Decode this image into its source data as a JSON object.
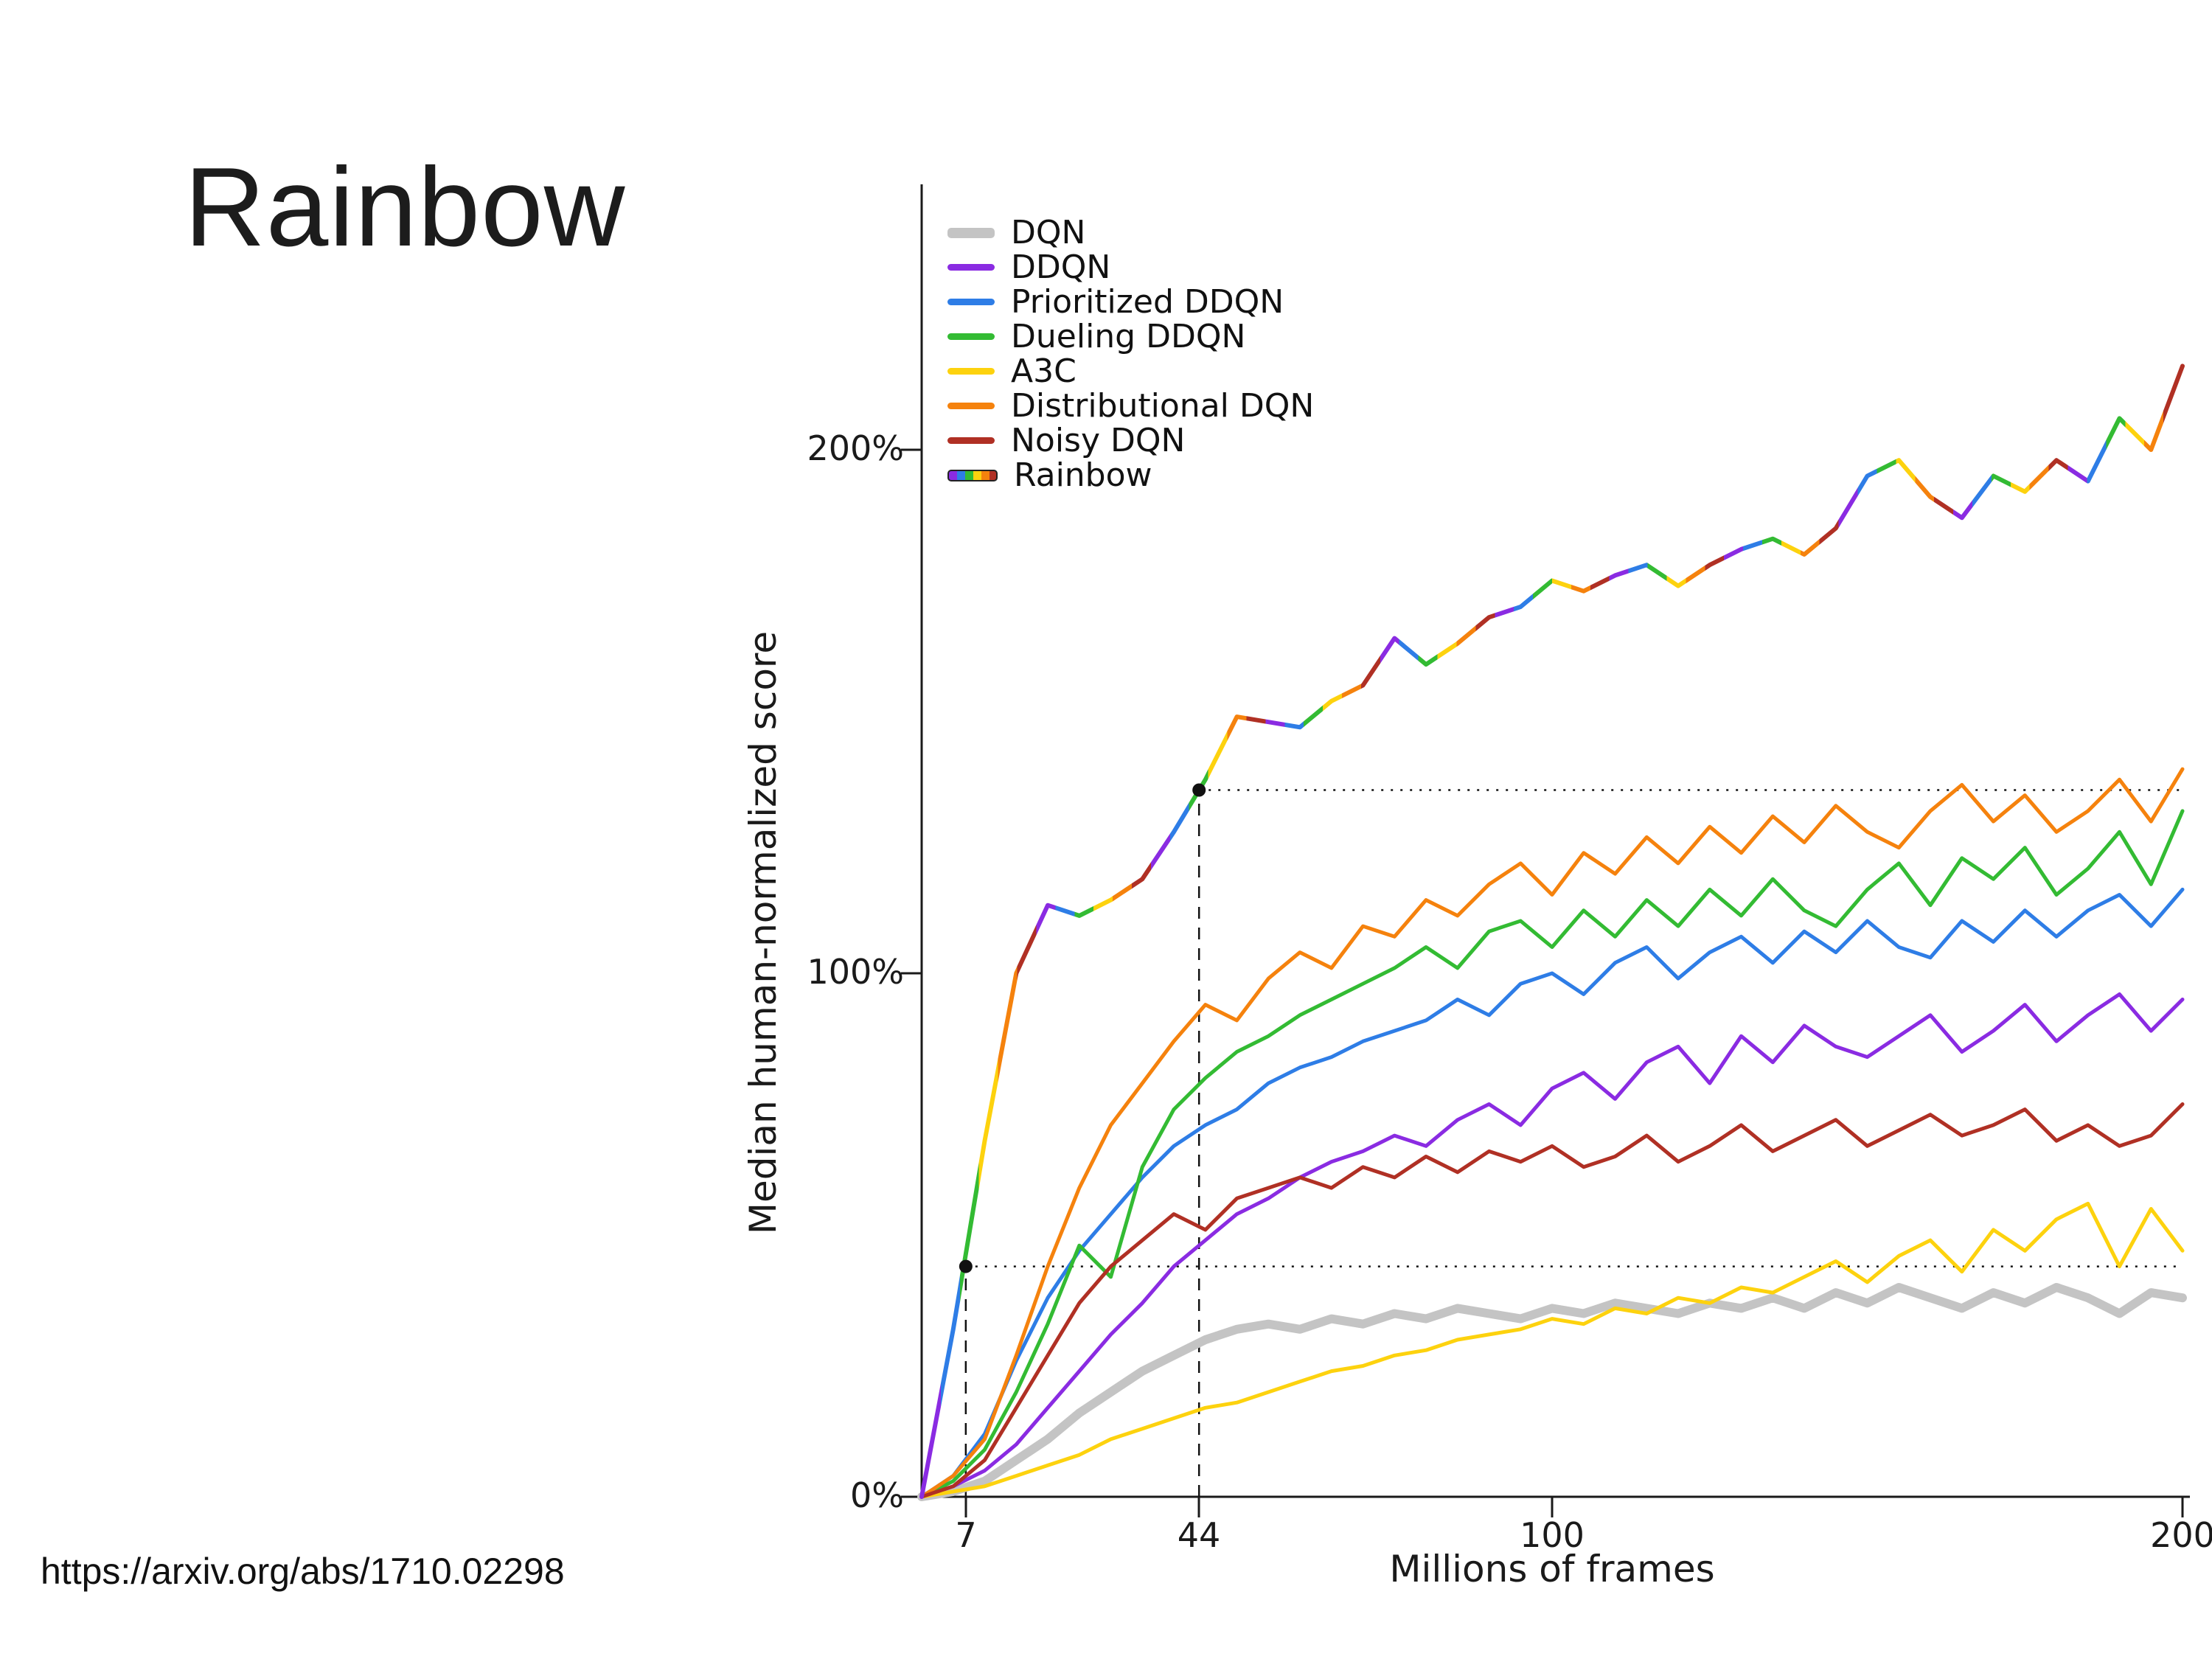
{
  "slide": {
    "title": "Rainbow",
    "source_url": "https://arxiv.org/abs/1710.02298"
  },
  "chart_data": {
    "type": "line",
    "title": "",
    "xlabel": "Millions of frames",
    "ylabel": "Median human-normalized score",
    "xlim": [
      0,
      200
    ],
    "ylim": [
      0,
      250
    ],
    "grid": false,
    "legend_position": "upper left",
    "x_tick_labels": [
      "7",
      "44",
      "100",
      "200"
    ],
    "x_tick_values": [
      7,
      44,
      100,
      200
    ],
    "y_tick_labels": [
      "0%",
      "100%",
      "200%"
    ],
    "y_tick_values": [
      0,
      100,
      200
    ],
    "x": [
      0,
      5,
      10,
      15,
      20,
      25,
      30,
      35,
      40,
      45,
      50,
      55,
      60,
      65,
      70,
      75,
      80,
      85,
      90,
      95,
      100,
      105,
      110,
      115,
      120,
      125,
      130,
      135,
      140,
      145,
      150,
      155,
      160,
      165,
      170,
      175,
      180,
      185,
      190,
      195,
      200
    ],
    "series": [
      {
        "name": "DQN",
        "color": "#c4c4c4",
        "width": 12,
        "values": [
          0,
          1,
          3,
          7,
          11,
          16,
          20,
          24,
          27,
          30,
          32,
          33,
          32,
          34,
          33,
          35,
          34,
          36,
          35,
          34,
          36,
          35,
          37,
          36,
          35,
          37,
          36,
          38,
          36,
          39,
          37,
          40,
          38,
          36,
          39,
          37,
          40,
          38,
          35,
          39,
          38
        ]
      },
      {
        "name": "DDQN",
        "color": "#8a2be2",
        "width": 5,
        "values": [
          0,
          2,
          5,
          10,
          17,
          24,
          31,
          37,
          44,
          49,
          54,
          57,
          61,
          64,
          66,
          69,
          67,
          72,
          75,
          71,
          78,
          81,
          76,
          83,
          86,
          79,
          88,
          83,
          90,
          86,
          84,
          88,
          92,
          85,
          89,
          94,
          87,
          92,
          96,
          89,
          95
        ]
      },
      {
        "name": "Prioritized DDQN",
        "color": "#2e7de6",
        "width": 5,
        "values": [
          0,
          4,
          12,
          26,
          38,
          47,
          54,
          61,
          67,
          71,
          74,
          79,
          82,
          84,
          87,
          89,
          91,
          95,
          92,
          98,
          100,
          96,
          102,
          105,
          99,
          104,
          107,
          102,
          108,
          104,
          110,
          105,
          103,
          110,
          106,
          112,
          107,
          112,
          115,
          109,
          116
        ]
      },
      {
        "name": "Dueling DDQN",
        "color": "#33bb33",
        "width": 5,
        "values": [
          0,
          3,
          9,
          20,
          33,
          48,
          42,
          63,
          74,
          80,
          85,
          88,
          92,
          95,
          98,
          101,
          105,
          101,
          108,
          110,
          105,
          112,
          107,
          114,
          109,
          116,
          111,
          118,
          112,
          109,
          116,
          121,
          113,
          122,
          118,
          124,
          115,
          120,
          127,
          117,
          131
        ]
      },
      {
        "name": "A3C",
        "color": "#fdd20e",
        "width": 5,
        "values": [
          0,
          1,
          2,
          4,
          6,
          8,
          11,
          13,
          15,
          17,
          18,
          20,
          22,
          24,
          25,
          27,
          28,
          30,
          31,
          32,
          34,
          33,
          36,
          35,
          38,
          37,
          40,
          39,
          42,
          45,
          41,
          46,
          49,
          43,
          51,
          47,
          53,
          56,
          44,
          55,
          47
        ]
      },
      {
        "name": "Distributional DQN",
        "color": "#f5820d",
        "width": 5,
        "values": [
          0,
          4,
          11,
          27,
          44,
          59,
          71,
          79,
          87,
          94,
          91,
          99,
          104,
          101,
          109,
          107,
          114,
          111,
          117,
          121,
          115,
          123,
          119,
          126,
          121,
          128,
          123,
          130,
          125,
          132,
          127,
          124,
          131,
          136,
          129,
          134,
          127,
          131,
          137,
          129,
          139
        ]
      },
      {
        "name": "Noisy DQN",
        "color": "#b03024",
        "width": 5,
        "values": [
          0,
          2,
          7,
          17,
          27,
          37,
          44,
          49,
          54,
          51,
          57,
          59,
          61,
          59,
          63,
          61,
          65,
          62,
          66,
          64,
          67,
          63,
          65,
          69,
          64,
          67,
          71,
          66,
          69,
          72,
          67,
          70,
          73,
          69,
          71,
          74,
          68,
          71,
          67,
          69,
          75
        ]
      },
      {
        "name": "Rainbow",
        "color": "rainbow",
        "width": 6,
        "values": [
          0,
          32,
          68,
          100,
          113,
          111,
          114,
          118,
          127,
          137,
          149,
          148,
          147,
          152,
          155,
          164,
          159,
          163,
          168,
          170,
          175,
          173,
          176,
          178,
          174,
          178,
          181,
          183,
          180,
          185,
          195,
          198,
          191,
          187,
          195,
          192,
          198,
          194,
          206,
          200,
          216
        ]
      }
    ],
    "rainbow_palette": [
      "#8a2be2",
      "#2e7de6",
      "#33bb33",
      "#fdd20e",
      "#f5820d",
      "#b03024"
    ],
    "annotations": {
      "markers": [
        {
          "x": 7,
          "y": 44
        },
        {
          "x": 44,
          "y": 135
        }
      ],
      "dashed_vlines": [
        {
          "x": 7,
          "y": 44
        },
        {
          "x": 44,
          "y": 135
        }
      ],
      "dotted_hlines": [
        {
          "y": 44,
          "from_x": 7
        },
        {
          "y": 135,
          "from_x": 44
        }
      ]
    }
  }
}
